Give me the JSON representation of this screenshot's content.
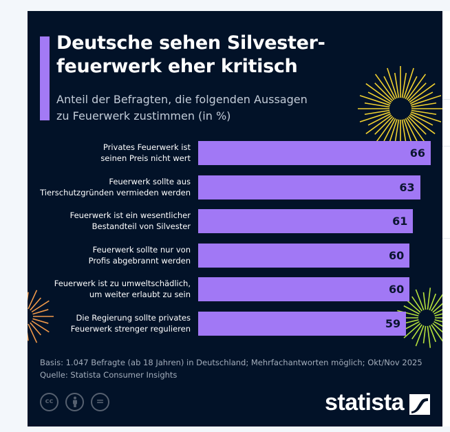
{
  "title_line1": "Deutsche sehen Silvester-",
  "title_line2": "feuerwerk eher kritisch",
  "subtitle_line1": "Anteil der Befragten, die folgenden Aussagen",
  "subtitle_line2": "zu Feuerwerk zustimmen (in %)",
  "colors": {
    "background": "#021228",
    "bar": "#a178f5",
    "accent": "#a37af5",
    "firework_yellow": "#f2d230",
    "firework_orange": "#f29a4a",
    "firework_green": "#b6e23c"
  },
  "chart_data": {
    "type": "bar",
    "orientation": "horizontal",
    "title": "Deutsche sehen Silvesterfeuerwerk eher kritisch",
    "subtitle": "Anteil der Befragten, die folgenden Aussagen zu Feuerwerk zustimmen (in %)",
    "categories": [
      [
        "Privates Feuerwerk ist",
        "seinen Preis nicht wert"
      ],
      [
        "Feuerwerk sollte aus",
        "Tierschutzgründen vermieden werden"
      ],
      [
        "Feuerwerk ist ein wesentlicher",
        "Bestandteil von Silvester"
      ],
      [
        "Feuerwerk sollte nur von",
        "Profis abgebrannt werden"
      ],
      [
        "Feuerwerk ist zu umweltschädlich,",
        "um weiter erlaubt zu sein"
      ],
      [
        "Die Regierung sollte privates",
        "Feuerwerk strenger regulieren"
      ]
    ],
    "values": [
      66,
      63,
      61,
      60,
      60,
      59
    ],
    "value_labels": [
      "66",
      "63",
      "61",
      "60",
      "60",
      "59"
    ],
    "xlim": [
      0,
      66
    ],
    "grid": false
  },
  "footer": {
    "basis": "Basis: 1.047 Befragte (ab 18 Jahren) in Deutschland; Mehrfachantworten möglich; Okt/Nov 2025",
    "source": "Quelle: Statista Consumer Insights"
  },
  "license_icons": [
    "cc-icon",
    "attribution-icon",
    "no-derivatives-icon"
  ],
  "license_labels": [
    "cc",
    "",
    "="
  ],
  "brand": "statista"
}
